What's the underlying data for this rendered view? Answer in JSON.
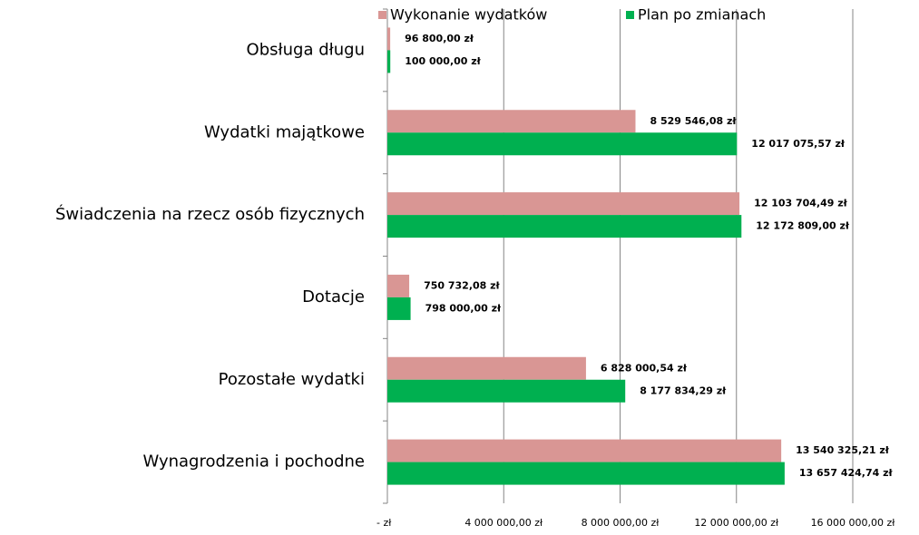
{
  "chart_data": {
    "type": "bar",
    "orientation": "horizontal",
    "categories": [
      "Obsługa długu",
      "Wydatki majątkowe",
      "Świadczenia na rzecz osób fizycznych",
      "Dotacje",
      "Pozostałe wydatki",
      "Wynagrodzenia i pochodne"
    ],
    "series": [
      {
        "name": "Wykonanie wydatków",
        "color": "#d99694",
        "values": [
          96800,
          8529546.08,
          12103704.49,
          750732.08,
          6828000.54,
          13540325.21
        ],
        "value_labels": [
          "96 800,00 zł",
          "8 529 546,08 zł",
          "12 103 704,49 zł",
          "750 732,08 zł",
          "6 828 000,54 zł",
          "13 540 325,21 zł"
        ]
      },
      {
        "name": "Plan po zmianach",
        "color": "#00b050",
        "values": [
          100000,
          12017075.57,
          12172809,
          798000,
          8177834.29,
          13657424.74
        ],
        "value_labels": [
          "100 000,00 zł",
          "12 017 075,57 zł",
          "12 172 809,00 zł",
          "798 000,00 zł",
          "8 177 834,29 zł",
          "13 657 424,74 zł"
        ]
      }
    ],
    "xlim": [
      0,
      16000000
    ],
    "xticks": [
      {
        "value": 0,
        "label": "-  zł"
      },
      {
        "value": 4000000,
        "label": "4 000 000,00 zł"
      },
      {
        "value": 8000000,
        "label": "8 000 000,00 zł"
      },
      {
        "value": 12000000,
        "label": "12 000 000,00 zł"
      },
      {
        "value": 16000000,
        "label": "16 000 000,00 zł"
      }
    ],
    "grid": true,
    "legend": "top"
  }
}
